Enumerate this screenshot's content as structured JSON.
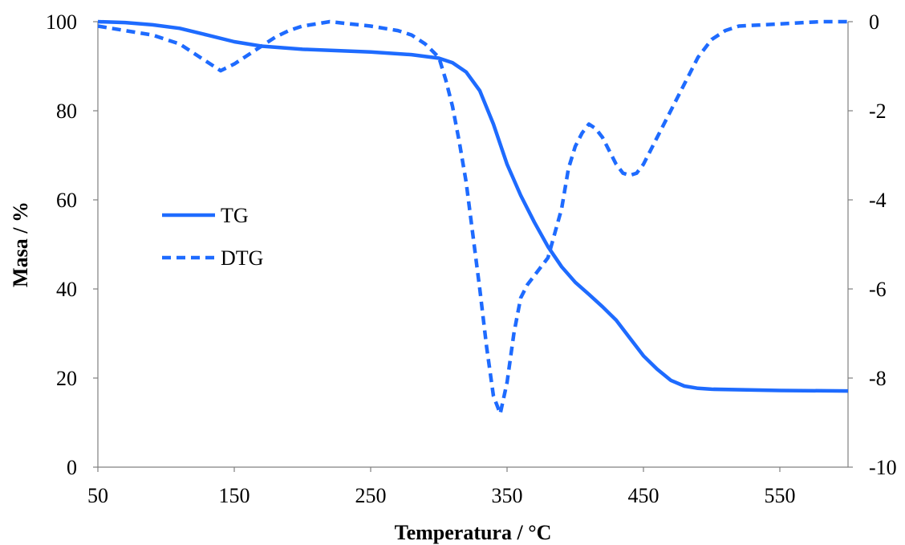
{
  "chart_data": {
    "type": "line",
    "title": "",
    "xlabel": "Temperatura  / °C",
    "ylabel": "Masa / %",
    "y2label": "",
    "xlim": [
      50,
      600
    ],
    "ylim": [
      0,
      100
    ],
    "y2lim": [
      -10,
      0
    ],
    "xticks": [
      50,
      150,
      250,
      350,
      450,
      550
    ],
    "yticks": [
      0,
      20,
      40,
      60,
      80,
      100
    ],
    "y2ticks": [
      -10,
      -8,
      -6,
      -4,
      -2,
      0
    ],
    "grid": false,
    "legend_position": "left-middle",
    "color": "#1E6BFF",
    "series": [
      {
        "name": "TG",
        "axis": "left",
        "style": "solid",
        "x": [
          50,
          70,
          90,
          110,
          130,
          150,
          170,
          200,
          250,
          280,
          300,
          310,
          320,
          330,
          340,
          350,
          360,
          370,
          380,
          390,
          400,
          410,
          420,
          430,
          440,
          450,
          460,
          470,
          480,
          490,
          500,
          550,
          600
        ],
        "y": [
          100,
          99.8,
          99.3,
          98.5,
          97,
          95.5,
          94.5,
          93.8,
          93.2,
          92.6,
          91.8,
          90.8,
          88.7,
          84.5,
          77,
          68,
          61,
          55,
          49.5,
          45,
          41.5,
          38.8,
          36,
          33,
          29,
          25,
          22,
          19.5,
          18.2,
          17.7,
          17.5,
          17.2,
          17.1
        ]
      },
      {
        "name": "DTG",
        "axis": "right",
        "style": "dashed",
        "x": [
          50,
          70,
          90,
          110,
          120,
          130,
          140,
          150,
          160,
          170,
          180,
          190,
          200,
          210,
          220,
          250,
          270,
          280,
          290,
          300,
          305,
          310,
          315,
          320,
          325,
          330,
          335,
          340,
          345,
          350,
          355,
          360,
          365,
          370,
          380,
          390,
          395,
          400,
          405,
          410,
          415,
          420,
          425,
          430,
          435,
          440,
          445,
          450,
          455,
          460,
          470,
          480,
          490,
          500,
          510,
          520,
          550,
          580,
          600
        ],
        "y": [
          -0.1,
          -0.2,
          -0.3,
          -0.5,
          -0.7,
          -0.9,
          -1.1,
          -0.95,
          -0.75,
          -0.55,
          -0.35,
          -0.2,
          -0.1,
          -0.05,
          0,
          -0.1,
          -0.2,
          -0.3,
          -0.5,
          -0.8,
          -1.3,
          -1.9,
          -2.7,
          -3.6,
          -4.8,
          -6.0,
          -7.3,
          -8.4,
          -8.8,
          -8.1,
          -7.0,
          -6.2,
          -5.9,
          -5.7,
          -5.3,
          -4.2,
          -3.3,
          -2.8,
          -2.5,
          -2.3,
          -2.4,
          -2.6,
          -2.9,
          -3.2,
          -3.4,
          -3.45,
          -3.4,
          -3.2,
          -2.9,
          -2.6,
          -2.0,
          -1.4,
          -0.8,
          -0.4,
          -0.2,
          -0.1,
          -0.05,
          0,
          0
        ]
      }
    ]
  }
}
